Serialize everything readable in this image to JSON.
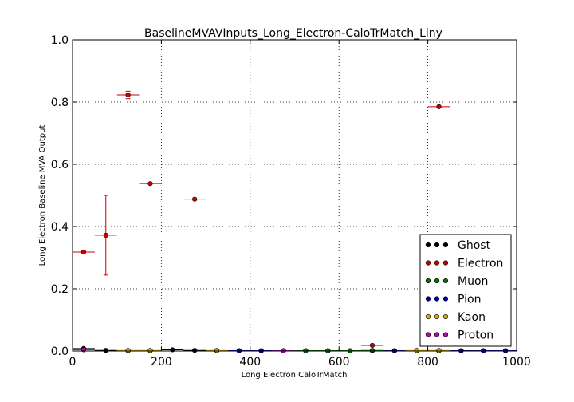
{
  "chart_data": {
    "type": "scatter",
    "title": "BaselineMVAVInputs_Long_Electron-CaloTrMatch_Liny",
    "xlabel": "Long Electron CaloTrMatch",
    "ylabel": "Long Electron Baseline MVA Output",
    "xlim": [
      0,
      1000
    ],
    "ylim": [
      0,
      1.0
    ],
    "x_ticks": [
      "0",
      "200",
      "400",
      "600",
      "800",
      "1000"
    ],
    "y_ticks": [
      "0.0",
      "0.2",
      "0.4",
      "0.6",
      "0.8",
      "1.0"
    ],
    "grid": true,
    "legend_position": "lower-right",
    "x_bin_halfwidth": 25,
    "series": [
      {
        "name": "Ghost",
        "color": "#000000",
        "points": [
          {
            "x": 25,
            "y": 0.008,
            "yerr": 0.002
          },
          {
            "x": 75,
            "y": 0.002,
            "yerr": 0
          },
          {
            "x": 125,
            "y": 0.001,
            "yerr": 0
          },
          {
            "x": 175,
            "y": 0.001,
            "yerr": 0
          },
          {
            "x": 225,
            "y": 0.004,
            "yerr": 0
          },
          {
            "x": 275,
            "y": 0.002,
            "yerr": 0
          },
          {
            "x": 325,
            "y": 0.001,
            "yerr": 0
          },
          {
            "x": 375,
            "y": 0.001,
            "yerr": 0
          },
          {
            "x": 425,
            "y": 0.001,
            "yerr": 0
          },
          {
            "x": 475,
            "y": 0.001,
            "yerr": 0
          },
          {
            "x": 525,
            "y": 0.001,
            "yerr": 0
          },
          {
            "x": 575,
            "y": 0.001,
            "yerr": 0
          },
          {
            "x": 625,
            "y": 0.001,
            "yerr": 0
          },
          {
            "x": 675,
            "y": 0.001,
            "yerr": 0
          },
          {
            "x": 725,
            "y": 0.001,
            "yerr": 0
          },
          {
            "x": 775,
            "y": 0.001,
            "yerr": 0
          },
          {
            "x": 825,
            "y": 0.001,
            "yerr": 0
          },
          {
            "x": 875,
            "y": 0.001,
            "yerr": 0
          },
          {
            "x": 925,
            "y": 0.001,
            "yerr": 0
          },
          {
            "x": 975,
            "y": 0.001,
            "yerr": 0
          }
        ]
      },
      {
        "name": "Electron",
        "color": "#cc0000",
        "points": [
          {
            "x": 25,
            "y": 0.318,
            "yerr": 0
          },
          {
            "x": 75,
            "y": 0.372,
            "yerr": 0.128
          },
          {
            "x": 125,
            "y": 0.823,
            "yerr": 0.012
          },
          {
            "x": 175,
            "y": 0.538,
            "yerr": 0
          },
          {
            "x": 275,
            "y": 0.488,
            "yerr": 0
          },
          {
            "x": 675,
            "y": 0.018,
            "yerr": 0
          },
          {
            "x": 825,
            "y": 0.785,
            "yerr": 0
          }
        ]
      },
      {
        "name": "Muon",
        "color": "#007700",
        "points": [
          {
            "x": 525,
            "y": 0.001,
            "yerr": 0
          },
          {
            "x": 575,
            "y": 0.001,
            "yerr": 0
          },
          {
            "x": 625,
            "y": 0.001,
            "yerr": 0
          },
          {
            "x": 675,
            "y": 0.002,
            "yerr": 0
          }
        ]
      },
      {
        "name": "Pion",
        "color": "#0000bb",
        "points": [
          {
            "x": 375,
            "y": 0.001,
            "yerr": 0
          },
          {
            "x": 425,
            "y": 0.001,
            "yerr": 0
          },
          {
            "x": 725,
            "y": 0.001,
            "yerr": 0
          },
          {
            "x": 875,
            "y": 0.001,
            "yerr": 0
          },
          {
            "x": 925,
            "y": 0.001,
            "yerr": 0
          },
          {
            "x": 975,
            "y": 0.001,
            "yerr": 0
          }
        ]
      },
      {
        "name": "Kaon",
        "color": "#ddaa00",
        "points": [
          {
            "x": 125,
            "y": 0.002,
            "yerr": 0
          },
          {
            "x": 175,
            "y": 0.002,
            "yerr": 0
          },
          {
            "x": 325,
            "y": 0.002,
            "yerr": 0
          },
          {
            "x": 775,
            "y": 0.002,
            "yerr": 0
          },
          {
            "x": 825,
            "y": 0.002,
            "yerr": 0
          }
        ]
      },
      {
        "name": "Proton",
        "color": "#bb00bb",
        "points": [
          {
            "x": 25,
            "y": 0.004,
            "yerr": 0
          },
          {
            "x": 475,
            "y": 0.001,
            "yerr": 0
          }
        ]
      }
    ]
  }
}
